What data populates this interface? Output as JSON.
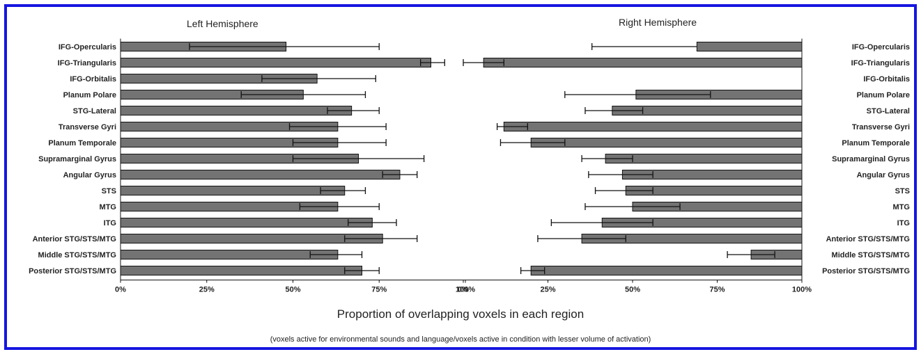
{
  "chart_data": {
    "type": "bar",
    "orientation": "horizontal",
    "xlabel": "Proportion of overlapping voxels in each region",
    "subtitle": "(voxels active for environmental sounds and language/voxels active in condition with lesser volume of activation)",
    "xlim": [
      0,
      1
    ],
    "categories": [
      "IFG-Opercularis",
      "IFG-Triangularis",
      "IFG-Orbitalis",
      "Planum Polare",
      "STG-Lateral",
      "Transverse Gyri",
      "Planum Temporale",
      "Supramarginal Gyrus",
      "Angular Gyrus",
      "STS",
      "MTG",
      "ITG",
      "Anterior STG/STS/MTG",
      "Middle STG/STS/MTG",
      "Posterior STG/STS/MTG"
    ],
    "panels": [
      {
        "title": "Left Hemisphere",
        "ticks": [
          "0%",
          "25%",
          "50%",
          "75%",
          "100%"
        ],
        "values": [
          0.48,
          0.9,
          0.57,
          0.53,
          0.67,
          0.63,
          0.63,
          0.69,
          0.81,
          0.65,
          0.63,
          0.73,
          0.76,
          0.63,
          0.7
        ],
        "err_low": [
          0.2,
          0.87,
          0.41,
          0.35,
          0.6,
          0.49,
          0.5,
          0.5,
          0.76,
          0.58,
          0.52,
          0.66,
          0.65,
          0.55,
          0.65
        ],
        "err_high": [
          0.75,
          0.94,
          0.74,
          0.71,
          0.75,
          0.77,
          0.77,
          0.88,
          0.86,
          0.71,
          0.75,
          0.8,
          0.86,
          0.7,
          0.75
        ]
      },
      {
        "title": "Right Hemisphere",
        "ticks": [
          "100%",
          "75%",
          "50%",
          "25%",
          "0%"
        ],
        "values": [
          0.31,
          0.94,
          0.0,
          0.49,
          0.56,
          0.88,
          0.8,
          0.58,
          0.53,
          0.52,
          0.5,
          0.59,
          0.65,
          0.15,
          0.8
        ],
        "err_low": [
          null,
          0.88,
          null,
          0.27,
          0.47,
          0.81,
          0.7,
          0.5,
          0.44,
          0.44,
          0.36,
          0.44,
          0.52,
          0.08,
          0.76
        ],
        "err_high": [
          0.62,
          1.0,
          null,
          0.7,
          0.64,
          0.9,
          0.89,
          0.65,
          0.63,
          0.61,
          0.64,
          0.74,
          0.78,
          0.22,
          0.83
        ]
      }
    ],
    "colors": {
      "bar": "#737373",
      "bar_edge": "#111111",
      "frame": "#1515e0"
    },
    "grid": false,
    "legend": "none"
  }
}
